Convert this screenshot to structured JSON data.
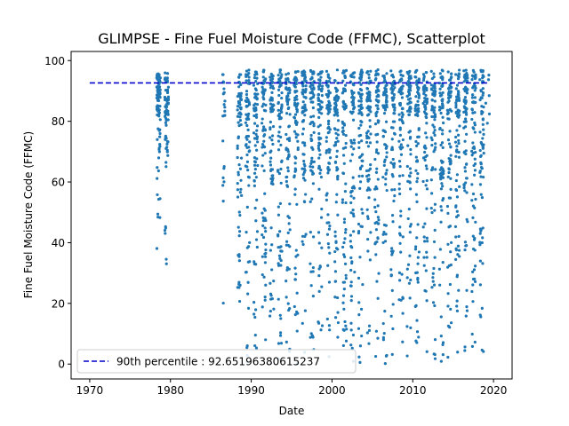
{
  "chart_data": {
    "type": "scatter",
    "title": "GLIMPSE - Fine Fuel Moisture Code (FFMC), Scatterplot",
    "xlabel": "Date",
    "ylabel": "Fine Fuel Moisture Code (FFMC)",
    "xlim": [
      1967.7,
      2022.3
    ],
    "ylim": [
      -4.9,
      103.0
    ],
    "x_ticks": [
      1970,
      1980,
      1990,
      2000,
      2010,
      2020
    ],
    "y_ticks": [
      0,
      20,
      40,
      60,
      80,
      100
    ],
    "grid": false,
    "legend": {
      "placement": "lower-left",
      "entries": [
        "90th percentile : 92.65196380615237"
      ]
    },
    "series": [
      {
        "kind": "scatter",
        "color": "#1f77b4",
        "seasons": [
          {
            "year": 1978,
            "start": 1978.3,
            "end": 1978.75,
            "n": 85,
            "spread": "narrow"
          },
          {
            "year": 1979,
            "start": 1979.3,
            "end": 1979.75,
            "n": 70,
            "spread": "narrow"
          },
          {
            "year": 1986,
            "start": 1986.45,
            "end": 1986.75,
            "n": 22,
            "spread": "medium"
          },
          {
            "year": 1988,
            "start": 1988.3,
            "end": 1988.8,
            "n": 70,
            "spread": "medium"
          },
          {
            "year": 1989,
            "start": 1989.3,
            "end": 1989.8,
            "n": 70,
            "spread": "wide"
          },
          {
            "year": 1990,
            "start": 1990.3,
            "end": 1990.8,
            "n": 75,
            "spread": "wide"
          },
          {
            "year": 1991,
            "start": 1991.3,
            "end": 1991.8,
            "n": 75,
            "spread": "wide"
          },
          {
            "year": 1992,
            "start": 1992.3,
            "end": 1992.8,
            "n": 75,
            "spread": "wide"
          },
          {
            "year": 1993,
            "start": 1993.3,
            "end": 1993.8,
            "n": 75,
            "spread": "wide"
          },
          {
            "year": 1994,
            "start": 1994.3,
            "end": 1994.8,
            "n": 75,
            "spread": "wide"
          },
          {
            "year": 1995,
            "start": 1995.3,
            "end": 1995.8,
            "n": 75,
            "spread": "wide"
          },
          {
            "year": 1996,
            "start": 1996.3,
            "end": 1996.8,
            "n": 75,
            "spread": "wide"
          },
          {
            "year": 1997,
            "start": 1997.3,
            "end": 1997.8,
            "n": 75,
            "spread": "wide"
          },
          {
            "year": 1998,
            "start": 1998.3,
            "end": 1998.8,
            "n": 75,
            "spread": "wide"
          },
          {
            "year": 1999,
            "start": 1999.3,
            "end": 1999.8,
            "n": 75,
            "spread": "wide"
          },
          {
            "year": 2000,
            "start": 2000.3,
            "end": 2000.8,
            "n": 75,
            "spread": "wide"
          },
          {
            "year": 2001,
            "start": 2001.3,
            "end": 2001.8,
            "n": 75,
            "spread": "wide"
          },
          {
            "year": 2002,
            "start": 2002.3,
            "end": 2002.8,
            "n": 75,
            "spread": "wide"
          },
          {
            "year": 2003,
            "start": 2003.3,
            "end": 2003.8,
            "n": 75,
            "spread": "wide"
          },
          {
            "year": 2004,
            "start": 2004.3,
            "end": 2004.8,
            "n": 75,
            "spread": "wide"
          },
          {
            "year": 2005,
            "start": 2005.3,
            "end": 2005.8,
            "n": 75,
            "spread": "wide"
          },
          {
            "year": 2006,
            "start": 2006.3,
            "end": 2006.8,
            "n": 75,
            "spread": "wide"
          },
          {
            "year": 2007,
            "start": 2007.3,
            "end": 2007.8,
            "n": 75,
            "spread": "wide"
          },
          {
            "year": 2008,
            "start": 2008.3,
            "end": 2008.8,
            "n": 75,
            "spread": "wide"
          },
          {
            "year": 2009,
            "start": 2009.3,
            "end": 2009.8,
            "n": 75,
            "spread": "wide"
          },
          {
            "year": 2010,
            "start": 2010.3,
            "end": 2010.8,
            "n": 75,
            "spread": "wide"
          },
          {
            "year": 2011,
            "start": 2011.3,
            "end": 2011.8,
            "n": 75,
            "spread": "wide"
          },
          {
            "year": 2012,
            "start": 2012.3,
            "end": 2012.8,
            "n": 75,
            "spread": "wide"
          },
          {
            "year": 2013,
            "start": 2013.3,
            "end": 2013.8,
            "n": 75,
            "spread": "wide"
          },
          {
            "year": 2014,
            "start": 2014.3,
            "end": 2014.8,
            "n": 75,
            "spread": "wide"
          },
          {
            "year": 2015,
            "start": 2015.3,
            "end": 2015.8,
            "n": 75,
            "spread": "wide"
          },
          {
            "year": 2016,
            "start": 2016.3,
            "end": 2016.8,
            "n": 75,
            "spread": "wide"
          },
          {
            "year": 2017,
            "start": 2017.3,
            "end": 2017.8,
            "n": 75,
            "spread": "wide"
          },
          {
            "year": 2018,
            "start": 2018.3,
            "end": 2018.8,
            "n": 75,
            "spread": "wide"
          },
          {
            "year": 2019,
            "start": 2019.0,
            "end": 2019.5,
            "n": 6,
            "spread": "narrow"
          }
        ]
      },
      {
        "kind": "hline",
        "name": "90th percentile : 92.65196380615237",
        "y": 92.65196380615237,
        "x_range": [
          1970,
          2019.5
        ],
        "color": "#0000cc",
        "style": "dashed"
      }
    ]
  }
}
